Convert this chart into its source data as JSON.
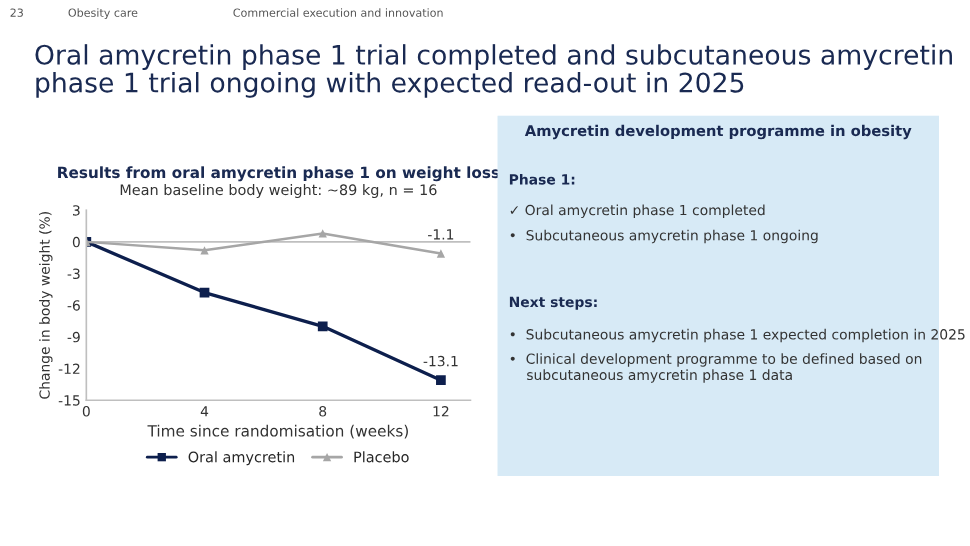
{
  "chart_data": [
    {
      "type": "line",
      "title": "Results from oral amycretin phase 1 on weight loss",
      "subtitle": "Mean baseline body weight: ~89 kg, n = 16",
      "xlabel": "Time since randomisation (weeks)",
      "ylabel": "Change in body weight (%)",
      "x": [
        0,
        4,
        8,
        12
      ],
      "series": [
        {
          "name": "Oral amycretin",
          "color": "#0d1f4d",
          "marker": "square",
          "values": [
            0,
            -4.8,
            -8.0,
            -13.1
          ],
          "value_labels": [
            null,
            null,
            null,
            "-13.1"
          ]
        },
        {
          "name": "Placebo",
          "color": "#a6a6a6",
          "marker": "triangle",
          "values": [
            0,
            -0.8,
            0.8,
            -1.1
          ],
          "value_labels": [
            null,
            null,
            null,
            "-1.1"
          ]
        }
      ],
      "xlim": [
        0,
        13
      ],
      "xticks": [
        0,
        4,
        8,
        12
      ],
      "ylim": [
        -15,
        3
      ],
      "yticks": [
        -15,
        -12,
        -9,
        -6,
        -3,
        0,
        3
      ],
      "ref_lines": [
        {
          "axis": "y",
          "value": 0,
          "color": "#bfbfbf"
        }
      ],
      "grid": false,
      "legend": "bottom",
      "line_style": "solid",
      "annotations": [
        "23",
        "Obesity care",
        "Commercial execution and innovation",
        "Oral amycretin phase 1 trial completed and subcutaneous amycretin phase 1 trial ongoing with expected read-out in 2025"
      ]
    },
    {
      "type": "other",
      "title": "Amycretin development programme in obesity",
      "annotations": [
        "Phase 1:",
        "✓ Oral amycretin phase 1 completed",
        "•  Subcutaneous amycretin phase 1 ongoing",
        "Next steps:",
        "•  Subcutaneous amycretin phase 1 expected completion in 2025",
        "•  Clinical development programme to be defined based on\n    subcutaneous amycretin phase 1 data"
      ]
    }
  ]
}
